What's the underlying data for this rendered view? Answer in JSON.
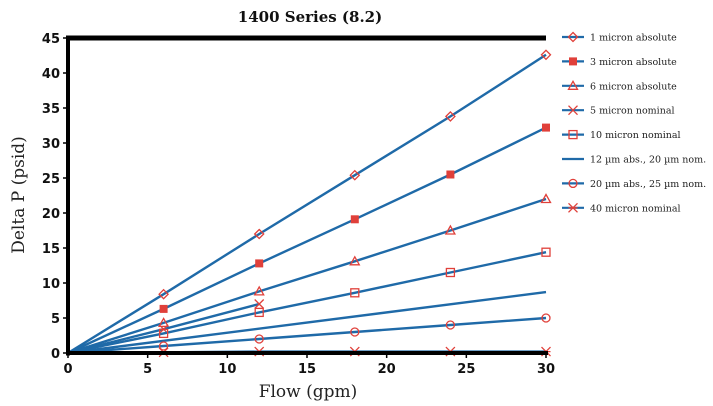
{
  "chart_data": {
    "type": "line",
    "title": "1400 Series (8.2)",
    "xlabel": "Flow (gpm)",
    "ylabel": "Delta P (psid)",
    "xlim": [
      0,
      30
    ],
    "ylim": [
      0,
      45
    ],
    "xticks": [
      "0",
      "5",
      "10",
      "15",
      "20",
      "25",
      "30"
    ],
    "yticks": [
      "0",
      "5",
      "10",
      "15",
      "20",
      "25",
      "30",
      "35",
      "40",
      "45"
    ],
    "legend_position": "right",
    "line_color": "#1f6aa8",
    "marker_color": "#e0403a",
    "series": [
      {
        "name": "1 micron absolute",
        "marker": "diamond",
        "x": [
          0,
          6,
          12,
          18,
          24,
          30
        ],
        "y": [
          0,
          8.4,
          17.0,
          25.4,
          33.8,
          42.6
        ]
      },
      {
        "name": "3 micron absolute",
        "marker": "square-filled",
        "x": [
          0,
          6,
          12,
          18,
          24,
          30
        ],
        "y": [
          0,
          6.3,
          12.8,
          19.1,
          25.5,
          32.2
        ]
      },
      {
        "name": "6 micron absolute",
        "marker": "triangle",
        "x": [
          0,
          6,
          12,
          18,
          24,
          30
        ],
        "y": [
          0,
          4.3,
          8.8,
          13.1,
          17.5,
          22.0
        ]
      },
      {
        "name": "5 micron nominal",
        "marker": "x",
        "x": [
          0,
          6,
          12
        ],
        "y": [
          0,
          3.4,
          7.0
        ]
      },
      {
        "name": "10 micron nominal",
        "marker": "square",
        "x": [
          0,
          6,
          12,
          18,
          24,
          30
        ],
        "y": [
          0,
          2.8,
          5.8,
          8.6,
          11.5,
          14.4
        ]
      },
      {
        "name": "12 µm abs., 20 µm nom.",
        "marker": "none",
        "x": [
          0,
          30
        ],
        "y": [
          0,
          8.7
        ]
      },
      {
        "name": "20 µm abs., 25 µm nom.",
        "marker": "circle",
        "x": [
          0,
          6,
          12,
          18,
          24,
          30
        ],
        "y": [
          0,
          1.0,
          2.0,
          3.0,
          4.0,
          5.0
        ]
      },
      {
        "name": "40 micron nominal",
        "marker": "asterisk",
        "x": [
          0,
          6,
          12,
          18,
          24,
          30
        ],
        "y": [
          0,
          0.1,
          0.2,
          0.2,
          0.2,
          0.2
        ]
      }
    ]
  }
}
